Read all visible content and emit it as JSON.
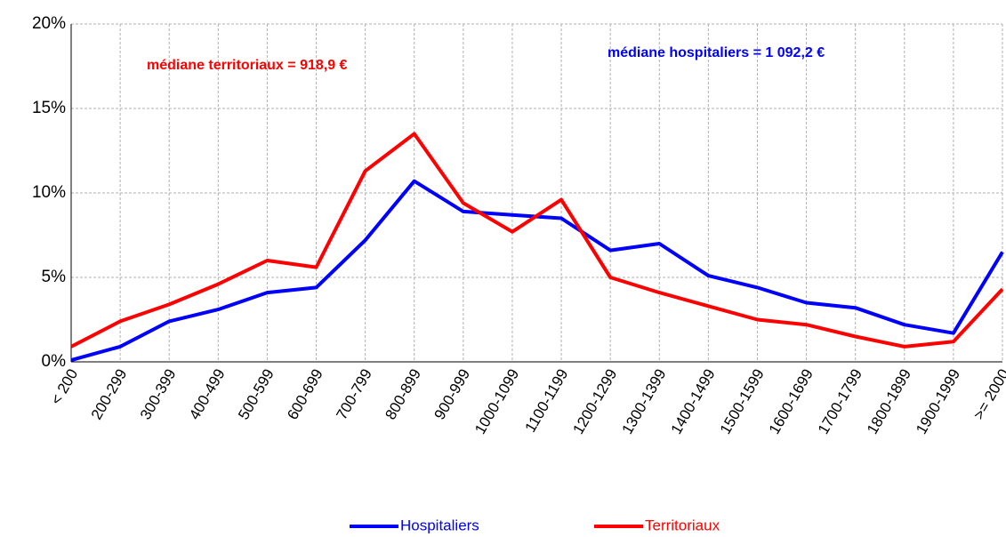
{
  "chart_data": {
    "type": "line",
    "categories": [
      "< 200",
      "200-299",
      "300-399",
      "400-499",
      "500-599",
      "600-699",
      "700-799",
      "800-899",
      "900-999",
      "1000-1099",
      "1100-1199",
      "1200-1299",
      "1300-1399",
      "1400-1499",
      "1500-1599",
      "1600-1699",
      "1700-1799",
      "1800-1899",
      "1900-1999",
      ">= 2000"
    ],
    "series": [
      {
        "name": "Hospitaliers",
        "color": "#0000ff",
        "values": [
          0.1,
          0.9,
          2.4,
          3.1,
          4.1,
          4.4,
          7.2,
          10.7,
          8.9,
          8.7,
          8.5,
          6.6,
          7.0,
          5.1,
          4.4,
          3.5,
          3.2,
          2.2,
          1.7,
          6.5
        ]
      },
      {
        "name": "Territoriaux",
        "color": "#ff0000",
        "values": [
          0.9,
          2.4,
          3.4,
          4.6,
          6.0,
          5.6,
          11.3,
          13.5,
          9.4,
          7.7,
          9.6,
          5.0,
          4.1,
          3.3,
          2.5,
          2.2,
          1.5,
          0.9,
          1.2,
          4.3
        ]
      }
    ],
    "ylim": [
      0,
      20
    ],
    "yticks": [
      {
        "value": 0,
        "label": "0%"
      },
      {
        "value": 5,
        "label": "5%"
      },
      {
        "value": 10,
        "label": "10%"
      },
      {
        "value": 15,
        "label": "15%"
      },
      {
        "value": 20,
        "label": "20%"
      }
    ],
    "grid": true,
    "annotations": [
      {
        "text": "médiane territoriaux = 918,9  €",
        "color": "#ff0000"
      },
      {
        "text": "médiane hospitaliers = 1 092,2  €",
        "color": "#0000ff"
      }
    ],
    "legend": "bottom"
  }
}
